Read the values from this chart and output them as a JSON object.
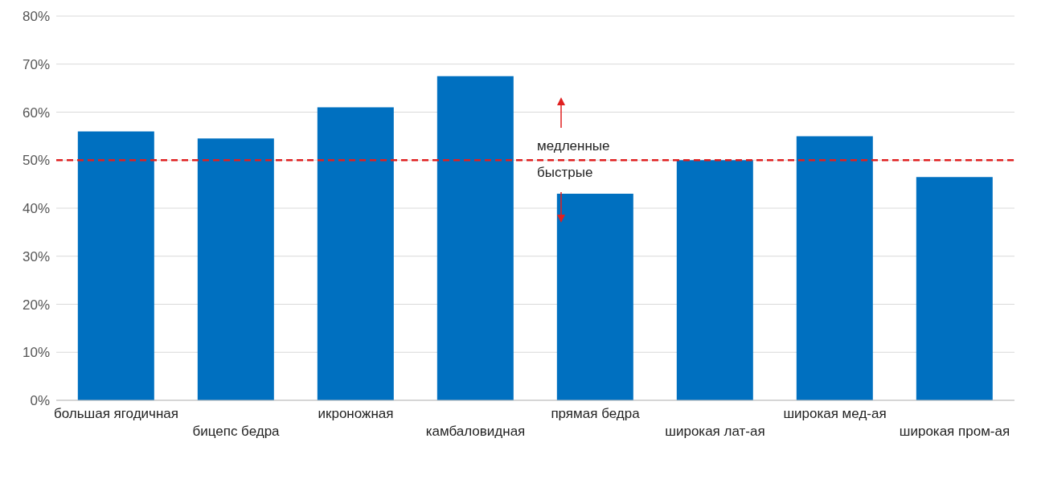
{
  "chart_data": {
    "type": "bar",
    "categories": [
      "большая ягодичная",
      "бицепс бедра",
      "икроножная",
      "камбаловидная",
      "прямая бедра",
      "широкая лат-ая",
      "широкая мед-ая",
      "широкая пром-ая"
    ],
    "values": [
      56,
      54.5,
      61,
      67.5,
      43,
      50,
      55,
      46.5
    ],
    "color": "#0070c0",
    "ylim": [
      0,
      80
    ],
    "yticks": [
      {
        "value": 0,
        "label": "0%"
      },
      {
        "value": 10,
        "label": "10%"
      },
      {
        "value": 20,
        "label": "20%"
      },
      {
        "value": 30,
        "label": "30%"
      },
      {
        "value": 40,
        "label": "40%"
      },
      {
        "value": 50,
        "label": "50%"
      },
      {
        "value": 60,
        "label": "60%"
      },
      {
        "value": 70,
        "label": "70%"
      },
      {
        "value": 80,
        "label": "80%"
      }
    ],
    "grid": "y",
    "ref_lines": [
      {
        "axis": "y",
        "value": 50,
        "color": "#e02020",
        "line_style": "dashed"
      }
    ],
    "annotations": [
      "медленные",
      "быстрые"
    ]
  }
}
